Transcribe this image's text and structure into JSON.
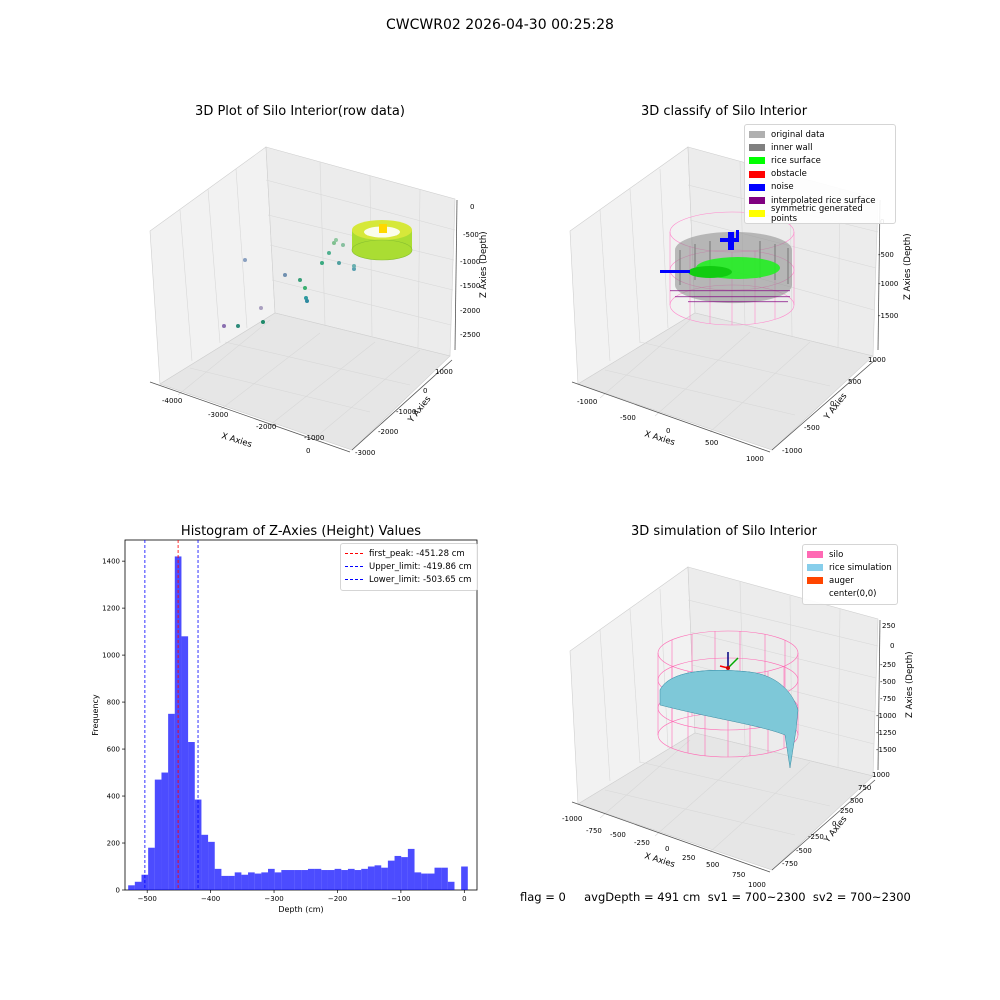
{
  "figure": {
    "title": "CWCWR02 2026-04-30 00:25:28"
  },
  "panels": [
    {
      "title": "3D Plot of Silo Interior(row data)",
      "xlabel": "X Axies",
      "ylabel": "Y Axies",
      "zlabel": "Z Axies (Depth)",
      "xticks": [
        "-4000",
        "-3000",
        "-2000",
        "-1000",
        "0"
      ],
      "yticks": [
        "1000",
        "0",
        "-1000",
        "-2000",
        "-3000"
      ],
      "zticks": [
        "0",
        "-500",
        "-1000",
        "-1500",
        "-2000",
        "-2500"
      ]
    },
    {
      "title": "3D classify of Silo Interior",
      "xlabel": "X Axies",
      "ylabel": "Y Axies",
      "zlabel": "Z Axies (Depth)",
      "xticks": [
        "-1000",
        "-500",
        "0",
        "500",
        "1000"
      ],
      "yticks": [
        "1000",
        "500",
        "0",
        "-500",
        "-1000"
      ],
      "zticks": [
        "0",
        "-500",
        "-1000",
        "-1500"
      ],
      "legend": [
        {
          "label": "original data",
          "color": "#b0b0b0"
        },
        {
          "label": "inner wall",
          "color": "#808080"
        },
        {
          "label": "rice surface",
          "color": "#00ff00"
        },
        {
          "label": "obstacle",
          "color": "#ff0000"
        },
        {
          "label": "noise",
          "color": "#0000ff"
        },
        {
          "label": "interpolated rice surface",
          "color": "#800080"
        },
        {
          "label": "symmetric generated points",
          "color": "#ffff00"
        }
      ]
    },
    {
      "title": "3D simulation of Silo Interior",
      "xlabel": "X Axies",
      "ylabel": "Y Axies",
      "zlabel": "Z Axies (Depth)",
      "xticks": [
        "-1000",
        "-750",
        "-500",
        "-250",
        "0",
        "250",
        "500",
        "750",
        "1000"
      ],
      "yticks": [
        "1000",
        "750",
        "500",
        "250",
        "0",
        "-250",
        "-500",
        "-750"
      ],
      "zticks": [
        "250",
        "0",
        "-250",
        "-500",
        "-750",
        "-1000",
        "-1250",
        "-1500"
      ],
      "legend": [
        {
          "label": "silo",
          "color": "#ff69b4"
        },
        {
          "label": "rice simulation",
          "color": "#87ceeb"
        },
        {
          "label": "auger",
          "color": "#ff4500"
        },
        {
          "label": "center(0,0)",
          "color": "#ffffff"
        }
      ]
    }
  ],
  "status_text": "flag = 0     avgDepth = 491 cm  sv1 = 700~2300  sv2 = 700~2300",
  "chart_data": [
    {
      "type": "bar",
      "title": "Histogram of Z-Axies (Height) Values",
      "xlabel": "Depth (cm)",
      "ylabel": "Frequency",
      "bar_color": "#0000ff",
      "xlim": [
        -535,
        20
      ],
      "ylim": [
        0,
        1490
      ],
      "xticks": [
        -500,
        -400,
        -300,
        -200,
        -100,
        0
      ],
      "yticks": [
        0,
        200,
        400,
        600,
        800,
        1000,
        1200,
        1400
      ],
      "bin_width": 10.5,
      "bin_starts": [
        -530,
        -519.5,
        -509,
        -498.5,
        -488,
        -477.5,
        -467,
        -456.5,
        -446,
        -435.5,
        -425,
        -414.5,
        -404,
        -393.5,
        -383,
        -372.5,
        -362,
        -351.5,
        -341,
        -330.5,
        -320,
        -309.5,
        -299,
        -288.5,
        -278,
        -267.5,
        -257,
        -246.5,
        -236,
        -225.5,
        -215,
        -204.5,
        -194,
        -183.5,
        -173,
        -162.5,
        -152,
        -141.5,
        -131,
        -120.5,
        -110,
        -99.5,
        -89,
        -78.5,
        -68,
        -57.5,
        -47,
        -36.5,
        -26,
        -15.5,
        -5
      ],
      "values": [
        20,
        35,
        65,
        180,
        470,
        500,
        750,
        1420,
        1080,
        630,
        385,
        235,
        205,
        90,
        60,
        60,
        75,
        65,
        75,
        70,
        75,
        90,
        75,
        85,
        85,
        85,
        85,
        90,
        90,
        85,
        85,
        90,
        85,
        90,
        85,
        90,
        100,
        105,
        95,
        125,
        145,
        140,
        175,
        75,
        70,
        70,
        95,
        95,
        35,
        0,
        100
      ],
      "vlines": [
        {
          "name": "first_peak: -451.28 cm",
          "x": -451.28,
          "color": "#ff0000"
        },
        {
          "name": "Upper_limit: -419.86 cm",
          "x": -419.86,
          "color": "#0000ff"
        },
        {
          "name": "Lower_limit: -503.65 cm",
          "x": -503.65,
          "color": "#0000ff"
        }
      ],
      "legend_position": "upper right"
    }
  ]
}
